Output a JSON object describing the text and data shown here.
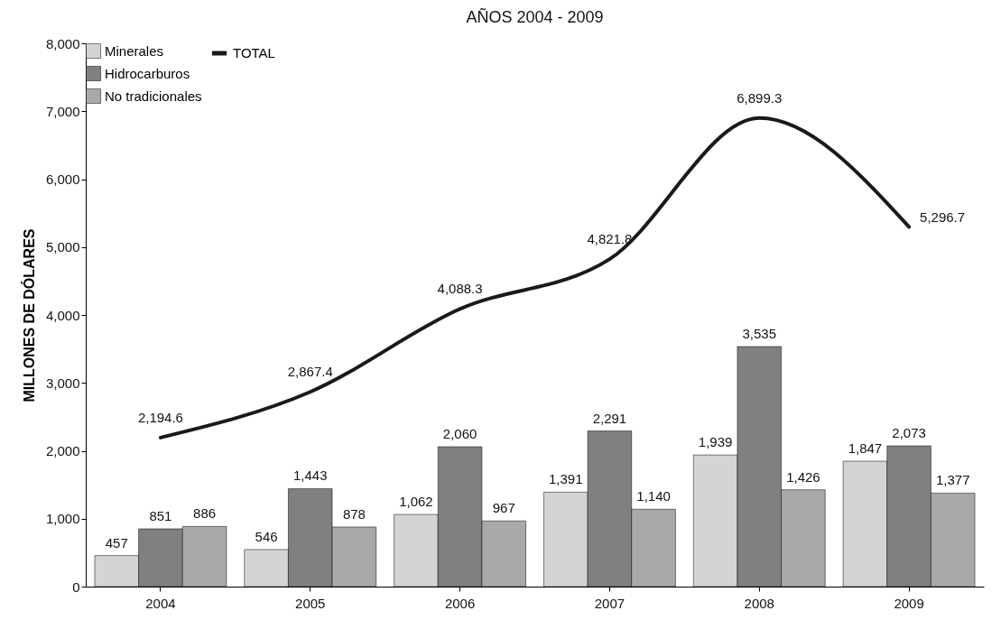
{
  "chart_data": {
    "type": "bar",
    "title": "AÑOS 2004 - 2009",
    "ylabel": "MILLONES DE DÓLARES",
    "categories": [
      "2004",
      "2005",
      "2006",
      "2007",
      "2008",
      "2009"
    ],
    "series": [
      {
        "name": "Minerales",
        "color": "#d4d4d4",
        "values": [
          457,
          546,
          1062,
          1391,
          1939,
          1847
        ],
        "value_labels": [
          "457",
          "546",
          "1,062",
          "1,391",
          "1,939",
          "1,847"
        ]
      },
      {
        "name": "Hidrocarburos",
        "color": "#808080",
        "values": [
          851,
          1443,
          2060,
          2291,
          3535,
          2073
        ],
        "value_labels": [
          "851",
          "1,443",
          "2,060",
          "2,291",
          "3,535",
          "2,073"
        ]
      },
      {
        "name": "No tradicionales",
        "color": "#a9a9a9",
        "values": [
          886,
          878,
          967,
          1140,
          1426,
          1377
        ],
        "value_labels": [
          "886",
          "878",
          "967",
          "1,140",
          "1,426",
          "1,377"
        ]
      },
      {
        "name": "TOTAL",
        "type": "line",
        "color": "#1a1a1a",
        "values": [
          2194.6,
          2867.4,
          4088.3,
          4821.8,
          6899.3,
          5296.7
        ],
        "value_labels": [
          "2,194.6",
          "2,867.4",
          "4,088.3",
          "4,821.8",
          "6,899.3",
          "5,296.7"
        ]
      }
    ],
    "ylim": [
      0,
      8000
    ],
    "yticks": [
      {
        "value": 0,
        "label": "0"
      },
      {
        "value": 1000,
        "label": "1,000"
      },
      {
        "value": 2000,
        "label": "2,000"
      },
      {
        "value": 3000,
        "label": "3,000"
      },
      {
        "value": 4000,
        "label": "4,000"
      },
      {
        "value": 5000,
        "label": "5,000"
      },
      {
        "value": 6000,
        "label": "6,000"
      },
      {
        "value": 7000,
        "label": "7,000"
      },
      {
        "value": 8000,
        "label": "8,000"
      }
    ],
    "grid": false,
    "legend": "top left"
  }
}
